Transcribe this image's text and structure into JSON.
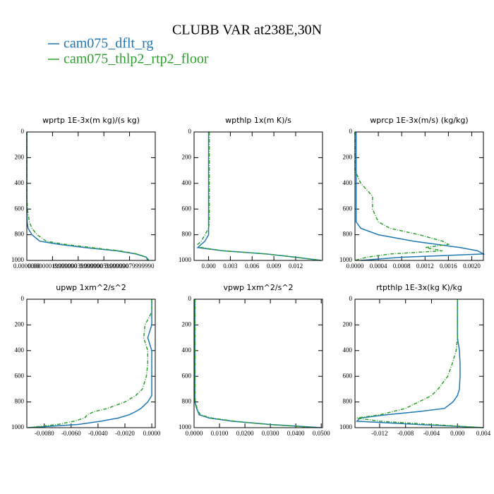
{
  "title": "CLUBB VAR at238E,30N",
  "chart_data": [
    {
      "type": "line",
      "title": "wprtp  1E-3x(m kg)/(s kg)",
      "y": [
        0,
        100,
        200,
        300,
        400,
        500,
        600,
        700,
        750,
        800,
        850,
        875,
        900,
        925,
        950,
        975,
        1000
      ],
      "ylim": [
        1000,
        0
      ],
      "yticks": [
        0,
        200,
        400,
        600,
        800,
        1000
      ],
      "xlim": [
        0,
        1e-06
      ],
      "xticks": [
        {
          "value": 0,
          "label": "0.0000000"
        },
        {
          "value": 2e-07,
          "label": "0.00000019999990"
        },
        {
          "value": 4e-07,
          "label": "0.00000039999990"
        },
        {
          "value": 6e-07,
          "label": "0.00000059999990"
        },
        {
          "value": 8e-07,
          "label": "0.00000079999990"
        }
      ],
      "series": [
        {
          "name": "cam075_dflt_rg",
          "color": "#1f77b4",
          "values": [
            0,
            0,
            0,
            0,
            0,
            0,
            0,
            2e-09,
            1e-08,
            4e-08,
            1e-07,
            2.5e-07,
            4.5e-07,
            7e-07,
            8.5e-07,
            9.3e-07,
            9.5e-07
          ]
        },
        {
          "name": "cam075_thlp2_rtp2_floor",
          "color": "#2ca02c",
          "values": [
            0,
            0,
            0,
            0,
            0,
            0,
            5e-09,
            2e-08,
            4e-08,
            8e-08,
            1.5e-07,
            3e-07,
            5e-07,
            7.2e-07,
            8.6e-07,
            9.3e-07,
            9.4e-07
          ]
        }
      ]
    },
    {
      "type": "line",
      "title": "wpthlp  1x(m K)/s",
      "y": [
        0,
        100,
        200,
        300,
        400,
        500,
        600,
        700,
        750,
        800,
        850,
        875,
        900,
        925,
        950,
        975,
        1000
      ],
      "ylim": [
        1000,
        0
      ],
      "yticks": [
        0,
        200,
        400,
        600,
        800,
        1000
      ],
      "xlim": [
        -0.002,
        0.0157
      ],
      "xticks": [
        {
          "value": 0,
          "label": "0.000"
        },
        {
          "value": 0.003,
          "label": "0.003"
        },
        {
          "value": 0.006,
          "label": "0.006"
        },
        {
          "value": 0.009,
          "label": "0.009"
        },
        {
          "value": 0.012,
          "label": "0.012"
        }
      ],
      "series": [
        {
          "name": "cam075_dflt_rg",
          "color": "#1f77b4",
          "values": [
            0,
            0,
            0,
            0,
            0,
            0,
            0,
            0,
            0,
            0,
            -0.0005,
            -0.001,
            -0.0015,
            0.002,
            0.008,
            0.012,
            0.0155
          ]
        },
        {
          "name": "cam075_thlp2_rtp2_floor",
          "color": "#2ca02c",
          "values": [
            0.0001,
            0.0001,
            0.0001,
            0.0001,
            0.0001,
            0.0001,
            0.0001,
            0.0001,
            0,
            -0.0005,
            -0.001,
            -0.0015,
            -0.001,
            0.002,
            0.008,
            0.012,
            0.0155
          ]
        }
      ]
    },
    {
      "type": "line",
      "title": "wprcp  1E-3x(m/s) (kg/kg)",
      "y": [
        0,
        100,
        200,
        300,
        400,
        500,
        600,
        700,
        750,
        800,
        850,
        875,
        900,
        925,
        950,
        975,
        1000
      ],
      "ylim": [
        1000,
        0
      ],
      "yticks": [
        0,
        200,
        400,
        600,
        800,
        1000
      ],
      "xlim": [
        0,
        0.0022
      ],
      "xticks": [
        {
          "value": 0,
          "label": "0.0000"
        },
        {
          "value": 0.0004,
          "label": "0.0004"
        },
        {
          "value": 0.0008,
          "label": "0.0008"
        },
        {
          "value": 0.0012,
          "label": "0.0012"
        },
        {
          "value": 0.0016,
          "label": "0.0016"
        },
        {
          "value": 0.002,
          "label": "0.0020"
        }
      ],
      "series": [
        {
          "name": "cam075_dflt_rg",
          "color": "#1f77b4",
          "values": [
            2e-05,
            2e-05,
            2e-05,
            2e-05,
            2e-05,
            2e-05,
            2e-05,
            2e-05,
            0.0001,
            0.0004,
            0.001,
            0.0014,
            0.0018,
            0.0021,
            0.0022,
            0.0008,
            0.0001
          ]
        },
        {
          "name": "cam075_thlp2_rtp2_floor",
          "color": "#2ca02c",
          "values": [
            0,
            0,
            0,
            0,
            0.0001,
            0.0003,
            0.0003,
            0.0004,
            0.0006,
            0.0011,
            0.0015,
            0.0016,
            0.0012,
            0.0015,
            0.0006,
            0.0002,
            0
          ]
        }
      ]
    },
    {
      "type": "line",
      "title": "upwp  1xm^2/s^2",
      "y": [
        0,
        100,
        200,
        300,
        400,
        500,
        600,
        700,
        750,
        800,
        850,
        875,
        900,
        925,
        950,
        975,
        1000
      ],
      "ylim": [
        1000,
        0
      ],
      "yticks": [
        0,
        200,
        400,
        600,
        800,
        1000
      ],
      "xlim": [
        -0.0093,
        0.00026
      ],
      "xticks": [
        {
          "value": -0.008,
          "label": "-0.0080"
        },
        {
          "value": -0.006,
          "label": "-0.0060"
        },
        {
          "value": -0.004,
          "label": "-0.0040"
        },
        {
          "value": -0.002,
          "label": "-0.0020"
        },
        {
          "value": 0,
          "label": "0.0000"
        }
      ],
      "series": [
        {
          "name": "cam075_dflt_rg",
          "color": "#1f77b4",
          "values": [
            0,
            0,
            0,
            -0.0003,
            0,
            0,
            0,
            0,
            0,
            -0.0003,
            -0.0008,
            -0.0012,
            -0.0017,
            -0.0025,
            -0.0038,
            -0.0055,
            -0.0092
          ]
        },
        {
          "name": "cam075_thlp2_rtp2_floor",
          "color": "#2ca02c",
          "values": [
            0,
            0,
            -0.0005,
            -0.0006,
            -0.0003,
            -0.0003,
            -0.0004,
            -0.0007,
            -0.0012,
            -0.002,
            -0.0033,
            -0.0043,
            -0.0048,
            -0.005,
            -0.0058,
            -0.007,
            -0.0092
          ]
        }
      ]
    },
    {
      "type": "line",
      "title": "vpwp  1xm^2/s^2",
      "y": [
        0,
        100,
        200,
        300,
        400,
        500,
        600,
        700,
        750,
        800,
        850,
        875,
        900,
        925,
        950,
        975,
        1000
      ],
      "ylim": [
        1000,
        0
      ],
      "yticks": [
        0,
        200,
        400,
        600,
        800,
        1000
      ],
      "xlim": [
        0,
        0.0505
      ],
      "xticks": [
        {
          "value": 0,
          "label": "0.0000"
        },
        {
          "value": 0.01,
          "label": "0.0100"
        },
        {
          "value": 0.02,
          "label": "0.0200"
        },
        {
          "value": 0.03,
          "label": "0.0300"
        },
        {
          "value": 0.04,
          "label": "0.0400"
        },
        {
          "value": 0.05,
          "label": "0.0500"
        }
      ],
      "series": [
        {
          "name": "cam075_dflt_rg",
          "color": "#1f77b4",
          "values": [
            0.0003,
            0.0003,
            0.0003,
            0.0003,
            0.0003,
            0.0003,
            0.0003,
            0.0003,
            0.0003,
            0.0003,
            0.001,
            0.0015,
            0.002,
            0.006,
            0.015,
            0.03,
            0.05
          ]
        },
        {
          "name": "cam075_thlp2_rtp2_floor",
          "color": "#2ca02c",
          "values": [
            0.0004,
            0.0004,
            0.0004,
            0.0004,
            0.0004,
            0.0004,
            0.0004,
            0.0004,
            0.0004,
            0.0005,
            0.0012,
            0.0017,
            0.0025,
            0.007,
            0.016,
            0.029,
            0.048
          ]
        }
      ]
    },
    {
      "type": "line",
      "title": "rtpthlp  1E-3x(kg K)/kg",
      "y": [
        0,
        100,
        200,
        300,
        400,
        500,
        600,
        700,
        750,
        800,
        850,
        875,
        900,
        925,
        950,
        975,
        1000
      ],
      "ylim": [
        1000,
        0
      ],
      "yticks": [
        0,
        200,
        400,
        600,
        800,
        1000
      ],
      "xlim": [
        -0.0158,
        0.004
      ],
      "xticks": [
        {
          "value": -0.012,
          "label": "-0.012"
        },
        {
          "value": -0.008,
          "label": "-0.008"
        },
        {
          "value": -0.004,
          "label": "-0.004"
        },
        {
          "value": 0,
          "label": "0.000"
        },
        {
          "value": 0.004,
          "label": "0.004"
        }
      ],
      "series": [
        {
          "name": "cam075_dflt_rg",
          "color": "#1f77b4",
          "values": [
            0,
            0,
            0,
            0,
            0.0003,
            0.0004,
            0.0004,
            0.0003,
            0,
            -0.0007,
            -0.002,
            -0.006,
            -0.011,
            -0.015,
            -0.0155,
            -0.006,
            0.004
          ]
        },
        {
          "name": "cam075_thlp2_rtp2_floor",
          "color": "#2ca02c",
          "values": [
            0,
            0,
            0,
            0,
            -0.0002,
            -0.0008,
            -0.0015,
            -0.003,
            -0.004,
            -0.006,
            -0.008,
            -0.01,
            -0.012,
            -0.0155,
            -0.012,
            -0.004,
            0.004
          ]
        }
      ]
    }
  ]
}
